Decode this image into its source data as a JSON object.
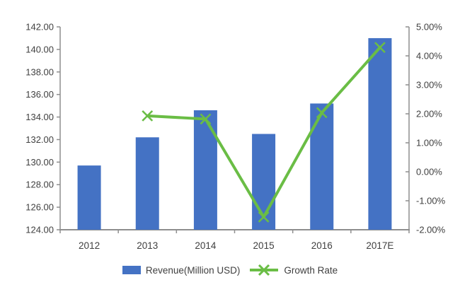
{
  "chart_data": {
    "type": "bar",
    "subtype": "combo-bar-line-dual-axis",
    "title": "",
    "categories": [
      "2012",
      "2013",
      "2014",
      "2015",
      "2016",
      "2017E"
    ],
    "series": [
      {
        "name": "Revenue(Million USD)",
        "type": "bar",
        "axis": "left",
        "color": "#4472C4",
        "values": [
          129.7,
          132.2,
          134.6,
          132.5,
          135.2,
          141.0
        ]
      },
      {
        "name": "Growth Rate",
        "type": "line",
        "axis": "right",
        "color": "#6ABD45",
        "marker": "x",
        "values": [
          null,
          1.93,
          1.82,
          -1.56,
          2.04,
          4.29
        ]
      }
    ],
    "left_axis": {
      "min": 124,
      "max": 142,
      "step": 2,
      "tick_labels": [
        "142.00",
        "140.00",
        "138.00",
        "136.00",
        "134.00",
        "132.00",
        "130.00",
        "128.00",
        "126.00",
        "124.00"
      ]
    },
    "right_axis": {
      "min": -2,
      "max": 5,
      "step": 1,
      "tick_labels": [
        "5.00%",
        "4.00%",
        "3.00%",
        "2.00%",
        "1.00%",
        "0.00%",
        "-1.00%",
        "-2.00%"
      ]
    },
    "grid": false,
    "legend_position": "bottom",
    "axis_color": "#8e8e8e",
    "text_color": "#404040"
  }
}
